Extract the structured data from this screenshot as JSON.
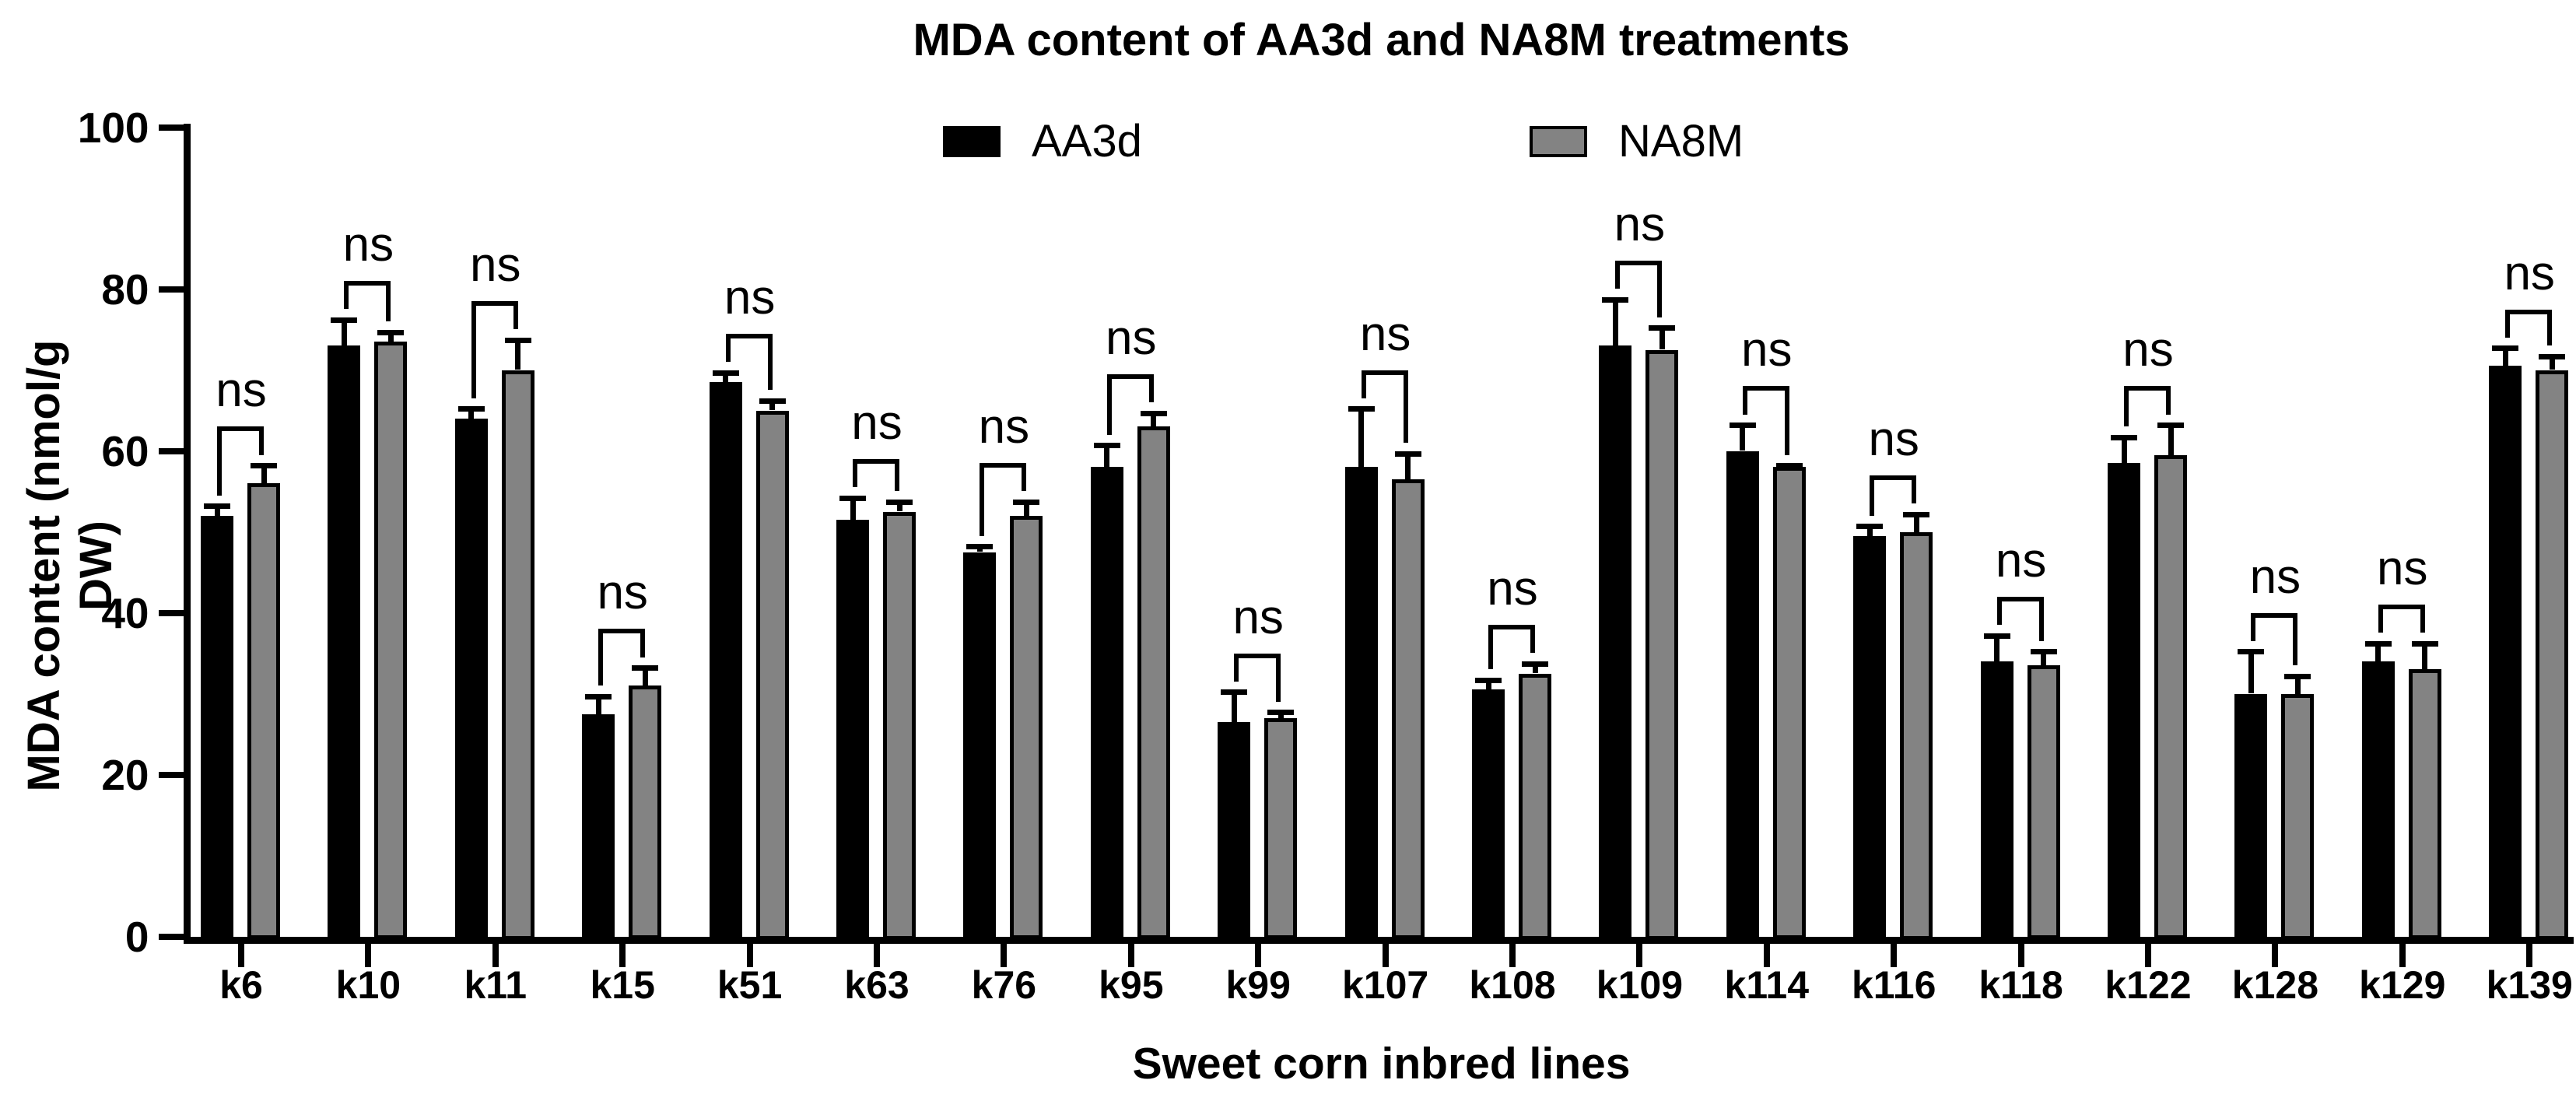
{
  "title": "MDA content of AA3d and NA8M treatments",
  "legend": {
    "items": [
      {
        "label": "AA3d",
        "color": "#000000",
        "border": "#000000"
      },
      {
        "label": "NA8M",
        "color": "#838383",
        "border": "#000000"
      }
    ]
  },
  "y_axis": {
    "label": "MDA content (nmol/g DW)"
  },
  "x_axis": {
    "label": "Sweet corn inbred lines"
  },
  "chart_data": {
    "type": "bar",
    "title": "MDA content of AA3d and NA8M treatments",
    "xlabel": "Sweet corn inbred lines",
    "ylabel": "MDA content (nmol/g DW)",
    "ylim": [
      0,
      100
    ],
    "yticks": [
      0,
      20,
      40,
      60,
      80,
      100
    ],
    "grid": false,
    "legend_position": "top",
    "error_bars": "upper SD whiskers",
    "categories": [
      "k6",
      "k10",
      "k11",
      "k15",
      "k51",
      "k63",
      "k76",
      "k95",
      "k99",
      "k107",
      "k108",
      "k109",
      "k114",
      "k116",
      "k118",
      "k122",
      "k128",
      "k129",
      "k139"
    ],
    "series": [
      {
        "name": "AA3d",
        "color": "#000000",
        "values": [
          52,
          73,
          64,
          27.5,
          68.5,
          51.5,
          47.5,
          58,
          26.5,
          58,
          30.5,
          73,
          60,
          49.5,
          34,
          58.5,
          30,
          34,
          70.5
        ],
        "errors": [
          1.5,
          3.5,
          1.5,
          2.5,
          1.5,
          3,
          1,
          3,
          4,
          7.5,
          1.5,
          6,
          3.5,
          1.5,
          3.5,
          3.5,
          5.5,
          2.5,
          2.5
        ]
      },
      {
        "name": "NA8M",
        "color": "#838383",
        "values": [
          56,
          73.5,
          70,
          31,
          65,
          52.5,
          52,
          63,
          27,
          56.5,
          32.5,
          72.5,
          58,
          50,
          33.5,
          59.5,
          30,
          33,
          70
        ],
        "errors": [
          2.5,
          1.5,
          4,
          2.5,
          1.5,
          1.5,
          2,
          2,
          1,
          3.5,
          1.5,
          3,
          0.5,
          2.5,
          2,
          4,
          2.5,
          3.5,
          2
        ]
      }
    ],
    "annotations": {
      "per_category_significance": [
        "ns",
        "ns",
        "ns",
        "ns",
        "ns",
        "ns",
        "ns",
        "ns",
        "ns",
        "ns",
        "ns",
        "ns",
        "ns",
        "ns",
        "ns",
        "ns",
        "ns",
        "ns",
        "ns"
      ]
    }
  }
}
